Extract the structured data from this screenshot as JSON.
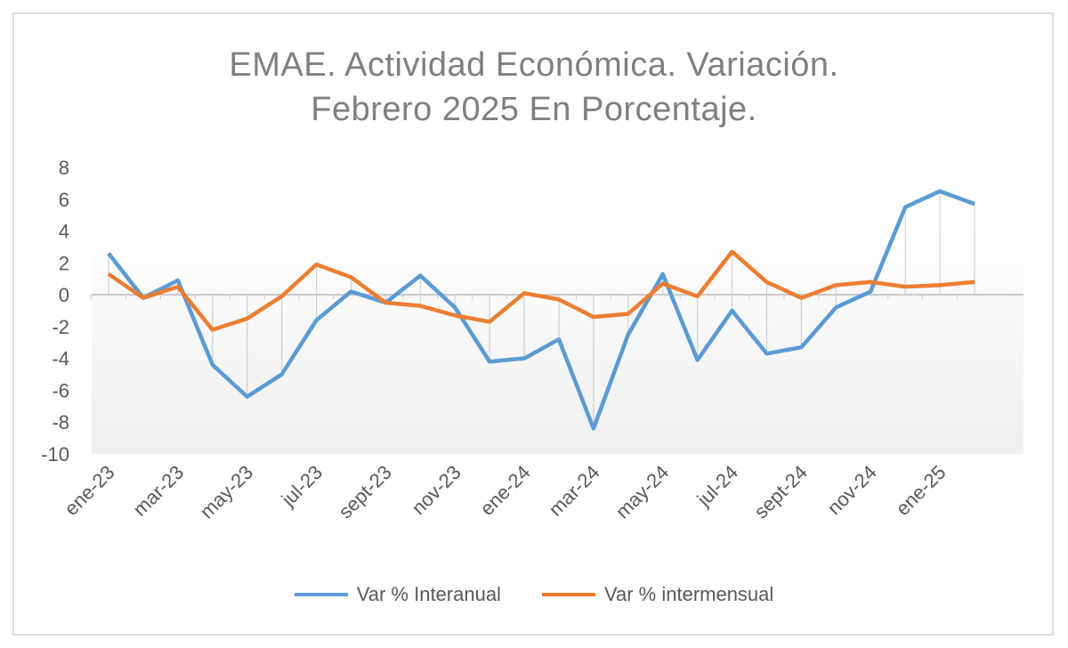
{
  "chart_data": {
    "type": "line",
    "title_lines": [
      "EMAE. Actividad Económica. Variación.",
      "Febrero 2025 En Porcentaje."
    ],
    "xlabel": "",
    "ylabel": "",
    "ylim": [
      -10,
      8
    ],
    "yticks": [
      8,
      6,
      4,
      2,
      0,
      -2,
      -4,
      -6,
      -8,
      -10
    ],
    "x": [
      "ene-23",
      "feb-23",
      "mar-23",
      "abr-23",
      "may-23",
      "jun-23",
      "jul-23",
      "ago-23",
      "sept-23",
      "oct-23",
      "nov-23",
      "dic-23",
      "ene-24",
      "feb-24",
      "mar-24",
      "abr-24",
      "may-24",
      "jun-24",
      "jul-24",
      "ago-24",
      "sept-24",
      "oct-24",
      "nov-24",
      "dic-24",
      "ene-25",
      "feb-25"
    ],
    "xtick_labels": [
      "ene-23",
      "mar-23",
      "may-23",
      "jul-23",
      "sept-23",
      "nov-23",
      "ene-24",
      "mar-24",
      "may-24",
      "jul-24",
      "sept-24",
      "nov-24",
      "ene-25"
    ],
    "grid": false,
    "legend_position": "bottom",
    "series": [
      {
        "name": "Var % Interanual",
        "color": "#5b9bd5",
        "values": [
          2.6,
          -0.2,
          0.9,
          -4.4,
          -6.4,
          -5.0,
          -1.6,
          0.2,
          -0.5,
          1.2,
          -0.8,
          -4.2,
          -4.0,
          -2.8,
          -8.4,
          -2.5,
          1.3,
          -4.1,
          -1.0,
          -3.7,
          -3.3,
          -0.8,
          0.2,
          5.5,
          6.5,
          5.7
        ]
      },
      {
        "name": "Var % intermensual",
        "color": "#ed7d31",
        "values": [
          1.3,
          -0.2,
          0.5,
          -2.2,
          -1.5,
          -0.1,
          1.9,
          1.1,
          -0.5,
          -0.7,
          -1.3,
          -1.7,
          0.1,
          -0.3,
          -1.4,
          -1.2,
          0.7,
          -0.1,
          2.7,
          0.8,
          -0.2,
          0.6,
          0.8,
          0.5,
          0.6,
          0.8
        ]
      }
    ]
  }
}
